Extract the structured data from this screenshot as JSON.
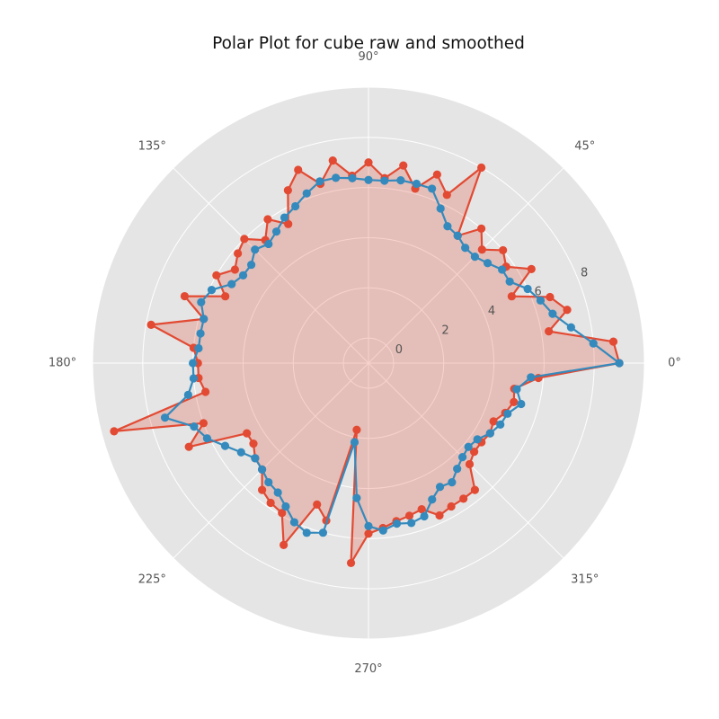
{
  "chart_data": {
    "type": "line",
    "projection": "polar",
    "title": "Polar Plot for cube raw and smoothed",
    "theta_unit": "degrees",
    "theta_tick_labels": [
      "0°",
      "45°",
      "90°",
      "135°",
      "180°",
      "225°",
      "270°",
      "315°"
    ],
    "r_tick_labels": [
      "0",
      "2",
      "4",
      "6",
      "8"
    ],
    "rlim": [
      -1,
      10
    ],
    "grid": true,
    "legend": "none",
    "colors": {
      "background": "#e5e5e5",
      "grid": "#ffffff",
      "raw": "#e24a33",
      "smoothed": "#348abd",
      "fill": "#e24a33"
    },
    "fill_opacity": 0.25,
    "theta": [
      0,
      5,
      10,
      15,
      20,
      25,
      30,
      35,
      40,
      45,
      50,
      55,
      60,
      65,
      70,
      75,
      80,
      85,
      90,
      95,
      100,
      105,
      110,
      115,
      120,
      125,
      130,
      135,
      140,
      145,
      150,
      155,
      160,
      165,
      170,
      175,
      180,
      185,
      190,
      195,
      200,
      205,
      210,
      215,
      220,
      225,
      230,
      235,
      240,
      245,
      250,
      255,
      260,
      265,
      270,
      275,
      280,
      285,
      290,
      295,
      300,
      305,
      310,
      315,
      320,
      325,
      330,
      335,
      340,
      345,
      350,
      355
    ],
    "series": [
      {
        "role": "raw",
        "r": [
          9.0,
          8.8,
          6.3,
          7.2,
          6.7,
          5.3,
          6.5,
          5.7,
          6.0,
          5.4,
          6.0,
          5.2,
          8.0,
          6.4,
          7.0,
          6.2,
          7.0,
          6.4,
          7.0,
          6.5,
          7.2,
          6.4,
          7.2,
          6.6,
          5.4,
          6.0,
          5.4,
          6.0,
          5.8,
          5.5,
          6.0,
          5.3,
          6.8,
          5.8,
          7.8,
          6.0,
          5.8,
          5.8,
          5.6,
          9.5,
          6.0,
          6.9,
          4.6,
          4.6,
          4.9,
          5.0,
          5.6,
          5.8,
          5.9,
          7.0,
          5.0,
          5.5,
          1.7,
          7.0,
          5.8,
          5.6,
          5.4,
          5.3,
          5.2,
          5.7,
          5.6,
          5.6,
          5.6,
          4.7,
          4.5,
          4.5,
          4.6,
          4.5,
          4.8,
          5.0,
          4.9,
          5.8
        ]
      },
      {
        "role": "smoothed",
        "r": [
          9.0,
          8.0,
          7.2,
          6.6,
          6.3,
          6.0,
          5.5,
          5.5,
          5.2,
          5.0,
          5.0,
          5.2,
          5.3,
          5.8,
          6.4,
          6.4,
          6.4,
          6.3,
          6.3,
          6.4,
          6.5,
          6.5,
          6.2,
          5.9,
          5.7,
          5.4,
          5.2,
          5.4,
          5.1,
          5.1,
          5.3,
          5.9,
          6.1,
          5.8,
          5.8,
          5.8,
          6.0,
          6.0,
          6.3,
          7.4,
          6.4,
          6.1,
          5.6,
          5.2,
          4.9,
          5.0,
          5.2,
          5.3,
          5.6,
          6.0,
          6.2,
          6.0,
          2.2,
          4.4,
          5.5,
          5.7,
          5.5,
          5.6,
          5.5,
          5.0,
          4.7,
          4.8,
          4.5,
          4.3,
          4.2,
          4.3,
          4.6,
          4.8,
          4.9,
          5.3,
          5.0,
          5.5
        ]
      }
    ]
  }
}
